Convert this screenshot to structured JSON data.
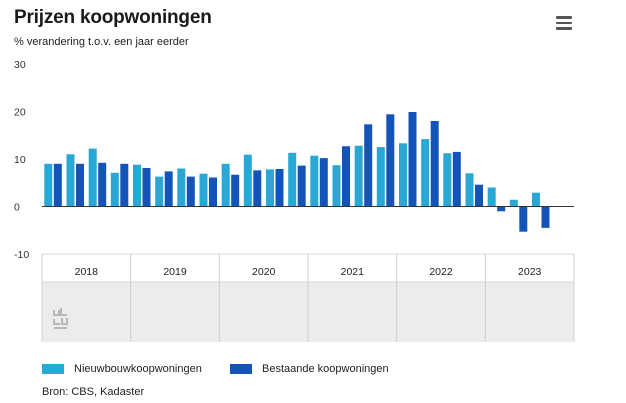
{
  "header": {
    "title": "Prijzen koopwoningen",
    "subtitle": "% verandering t.o.v. een jaar eerder",
    "menu_icon": "hamburger-menu-icon"
  },
  "logo_icon": "cbs-logo-icon",
  "source": "Bron: CBS, Kadaster",
  "colors": {
    "nieuwbouw": "#29a8d6",
    "bestaande": "#1454b8",
    "navigator_bg": "#ececec"
  },
  "chart_data": {
    "type": "bar",
    "title": "Prijzen koopwoningen",
    "subtitle": "% verandering t.o.v. een jaar eerder",
    "xlabel": "",
    "ylabel": "",
    "ylim": [
      -10,
      30
    ],
    "yticks": [
      -10,
      0,
      10,
      20,
      30
    ],
    "grid": false,
    "legend_position": "bottom-left",
    "categories": [
      "2018 Q1",
      "2018 Q2",
      "2018 Q3",
      "2018 Q4",
      "2019 Q1",
      "2019 Q2",
      "2019 Q3",
      "2019 Q4",
      "2020 Q1",
      "2020 Q2",
      "2020 Q3",
      "2020 Q4",
      "2021 Q1",
      "2021 Q2",
      "2021 Q3",
      "2021 Q4",
      "2022 Q1",
      "2022 Q2",
      "2022 Q3",
      "2022 Q4",
      "2023 Q1",
      "2023 Q2",
      "2023 Q3",
      "2023 Q4"
    ],
    "year_labels": [
      "2018",
      "2019",
      "2020",
      "2021",
      "2022",
      "2023"
    ],
    "series": [
      {
        "name": "Nieuwbouwkoopwoningen",
        "values": [
          9.0,
          11.0,
          12.2,
          7.1,
          8.8,
          6.3,
          8.0,
          6.9,
          9.0,
          10.9,
          7.8,
          11.3,
          10.7,
          8.7,
          12.8,
          12.5,
          13.3,
          14.2,
          11.2,
          7.0,
          4.0,
          1.4,
          2.9,
          null
        ]
      },
      {
        "name": "Bestaande koopwoningen",
        "values": [
          9.0,
          9.0,
          9.2,
          9.0,
          8.1,
          7.4,
          6.3,
          6.1,
          6.7,
          7.6,
          7.9,
          8.6,
          10.2,
          12.7,
          17.3,
          19.4,
          19.9,
          18.0,
          11.5,
          4.6,
          -1.0,
          -5.3,
          -4.5,
          null
        ]
      }
    ]
  }
}
